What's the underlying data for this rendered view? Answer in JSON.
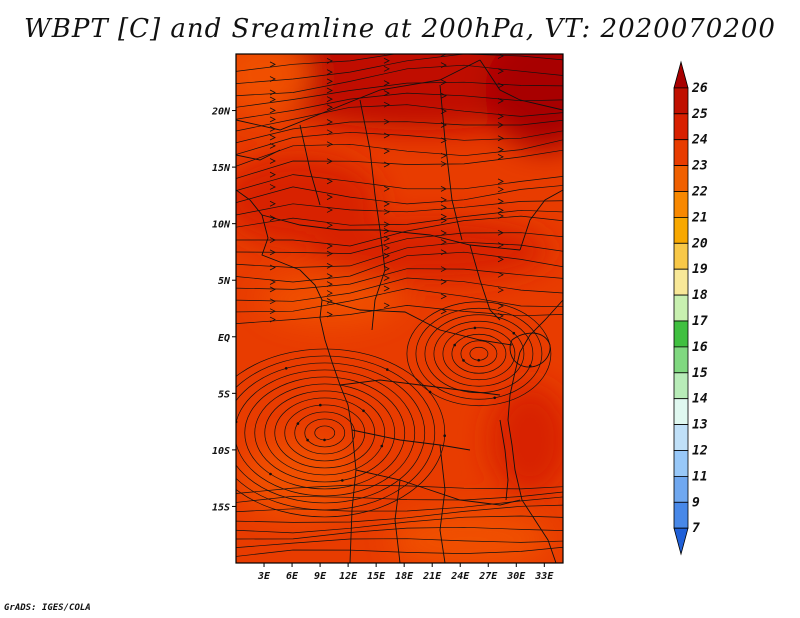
{
  "title": "WBPT [C] and Sreamline at 200hPa, VT: 2020070200",
  "credit": "GrADS: IGES/COLA",
  "map": {
    "lon_range": [
      0,
      35
    ],
    "lat_range": [
      -20,
      25
    ],
    "lon_ticks": [
      "3E",
      "6E",
      "9E",
      "12E",
      "15E",
      "18E",
      "21E",
      "24E",
      "27E",
      "30E",
      "33E"
    ],
    "lat_ticks": [
      "20N",
      "15N",
      "10N",
      "5N",
      "EQ",
      "5S",
      "10S",
      "15S"
    ],
    "field": "WBPT",
    "field_value_range": [
      23,
      26
    ],
    "vortices": [
      {
        "name": "cyclonic-circulation-west",
        "lon": 9.5,
        "lat": -8.5
      },
      {
        "name": "circulation-east",
        "lon": 26,
        "lat": -1.5
      }
    ]
  },
  "colorbar": {
    "labels": [
      "26",
      "25",
      "24",
      "23",
      "22",
      "21",
      "20",
      "19",
      "18",
      "17",
      "16",
      "15",
      "14",
      "13",
      "12",
      "11",
      "9",
      "7"
    ],
    "colors": [
      "#a80000",
      "#c01000",
      "#d82000",
      "#e83c00",
      "#f06000",
      "#f88800",
      "#f8a800",
      "#f8c848",
      "#f8e898",
      "#c8f0b0",
      "#40c040",
      "#80d880",
      "#b8ecb8",
      "#e0f8f0",
      "#c0e0f8",
      "#98c8f8",
      "#70a8f0",
      "#4888e8",
      "#2060d8"
    ]
  },
  "colors": {
    "frame": "#000000",
    "background": "#ffffff"
  }
}
